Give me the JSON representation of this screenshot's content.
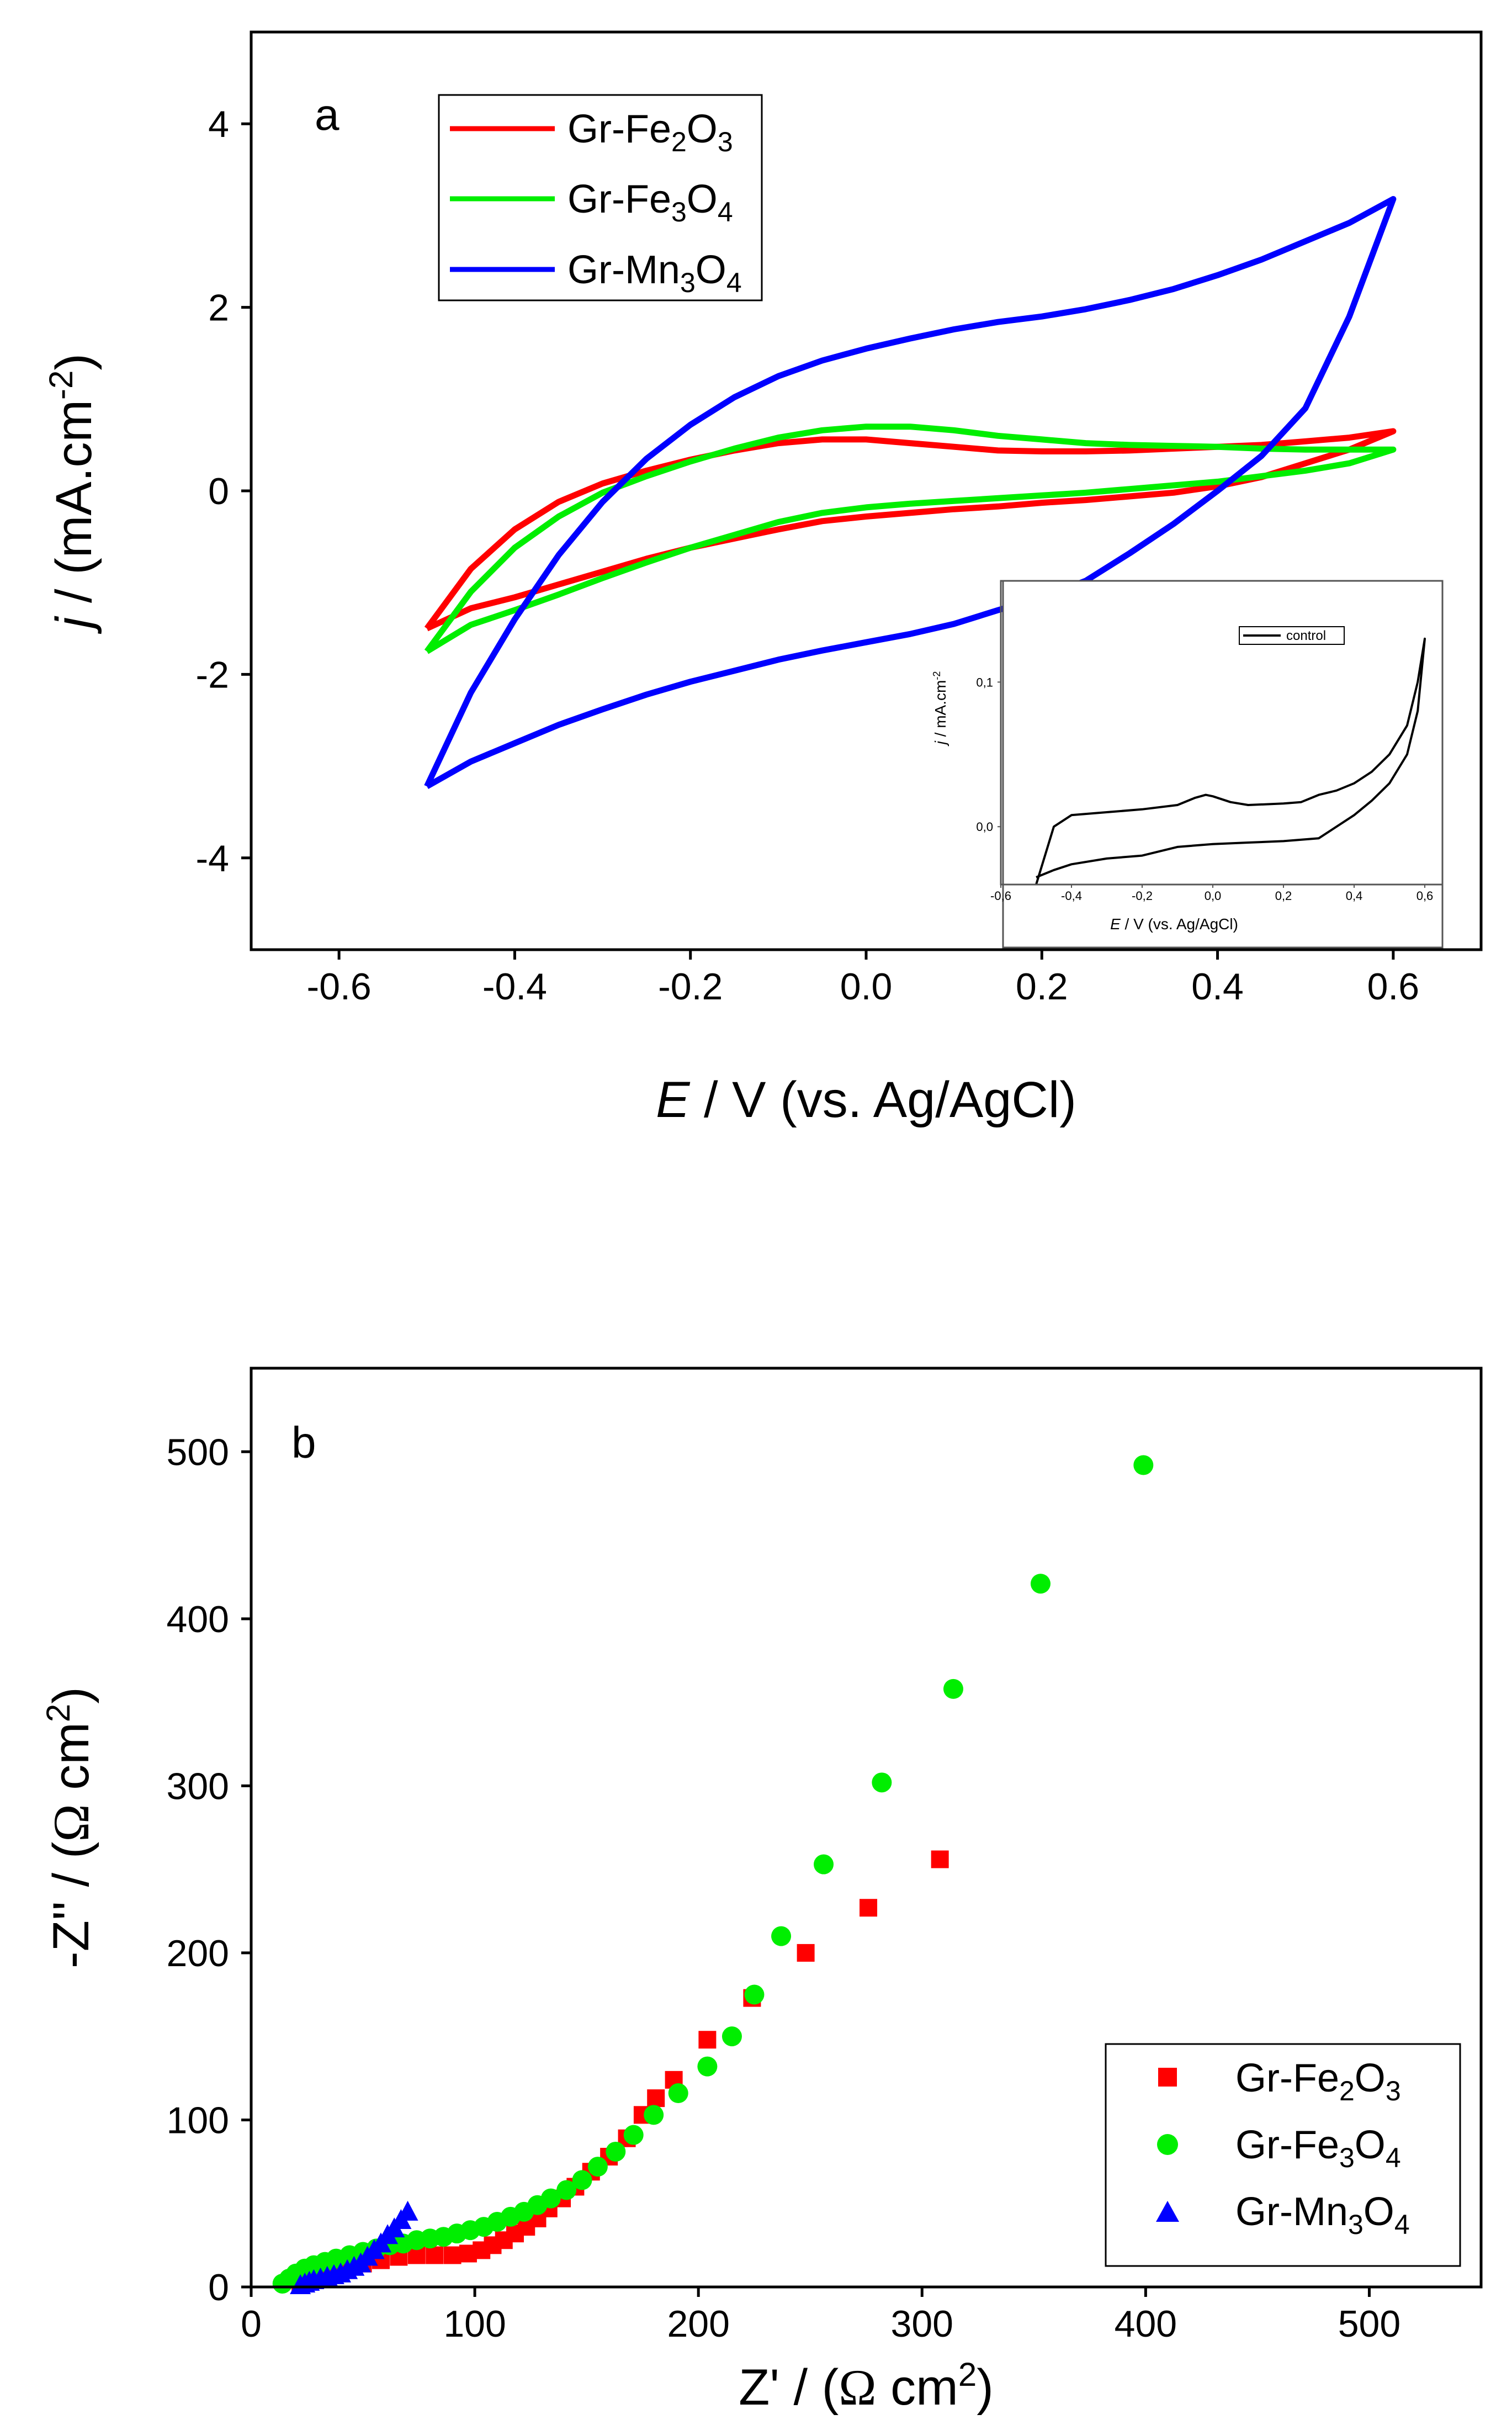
{
  "chart_data": [
    {
      "type": "line",
      "panel_label": "a",
      "xlabel": {
        "italic": "E",
        "rest": " / V (vs. Ag/AgCl)"
      },
      "ylabel": {
        "italic": "j",
        "rest": " / (mA.cm",
        "sup": "-2",
        "close": ")"
      },
      "xlim": [
        -0.7,
        0.7
      ],
      "ylim": [
        -5,
        5
      ],
      "xticks": [
        -0.6,
        -0.4,
        -0.2,
        0.0,
        0.2,
        0.4,
        0.6
      ],
      "xtick_labels": [
        "-0.6",
        "-0.4",
        "-0.2",
        "0.0",
        "0.2",
        "0.4",
        "0.6"
      ],
      "yticks": [
        -4,
        -2,
        0,
        2,
        4
      ],
      "ytick_labels": [
        "-4",
        "-2",
        "0",
        "2",
        "4"
      ],
      "legend_position": "top-left",
      "series": [
        {
          "name": "Gr-Fe2O3",
          "label": {
            "a": "Gr-Fe",
            "s1": "2",
            "b": "O",
            "s2": "3"
          },
          "color": "#ff0000",
          "x": [
            -0.5,
            -0.45,
            -0.4,
            -0.35,
            -0.3,
            -0.25,
            -0.2,
            -0.15,
            -0.1,
            -0.05,
            0.0,
            0.05,
            0.1,
            0.15,
            0.2,
            0.25,
            0.3,
            0.35,
            0.4,
            0.45,
            0.5,
            0.55,
            0.6,
            0.55,
            0.5,
            0.45,
            0.4,
            0.35,
            0.3,
            0.25,
            0.2,
            0.15,
            0.1,
            0.05,
            0.0,
            -0.05,
            -0.1,
            -0.15,
            -0.2,
            -0.25,
            -0.3,
            -0.35,
            -0.4,
            -0.45,
            -0.5
          ],
          "y": [
            -1.5,
            -0.85,
            -0.42,
            -0.12,
            0.08,
            0.22,
            0.34,
            0.44,
            0.52,
            0.56,
            0.56,
            0.52,
            0.48,
            0.44,
            0.43,
            0.43,
            0.44,
            0.46,
            0.48,
            0.5,
            0.54,
            0.58,
            0.65,
            0.45,
            0.3,
            0.15,
            0.05,
            -0.02,
            -0.06,
            -0.1,
            -0.13,
            -0.17,
            -0.2,
            -0.24,
            -0.28,
            -0.33,
            -0.42,
            -0.52,
            -0.62,
            -0.74,
            -0.88,
            -1.02,
            -1.16,
            -1.28,
            -1.5
          ]
        },
        {
          "name": "Gr-Fe3O4",
          "label": {
            "a": "Gr-Fe",
            "s1": "3",
            "b": "O",
            "s2": "4"
          },
          "color": "#00ee00",
          "x": [
            -0.5,
            -0.45,
            -0.4,
            -0.35,
            -0.3,
            -0.25,
            -0.2,
            -0.15,
            -0.1,
            -0.05,
            0.0,
            0.05,
            0.1,
            0.15,
            0.2,
            0.25,
            0.3,
            0.35,
            0.4,
            0.45,
            0.5,
            0.55,
            0.6,
            0.55,
            0.5,
            0.45,
            0.4,
            0.35,
            0.3,
            0.25,
            0.2,
            0.15,
            0.1,
            0.05,
            0.0,
            -0.05,
            -0.1,
            -0.15,
            -0.2,
            -0.25,
            -0.3,
            -0.35,
            -0.4,
            -0.45,
            -0.5
          ],
          "y": [
            -1.75,
            -1.1,
            -0.62,
            -0.28,
            -0.02,
            0.16,
            0.32,
            0.46,
            0.58,
            0.66,
            0.7,
            0.7,
            0.66,
            0.6,
            0.56,
            0.52,
            0.5,
            0.49,
            0.48,
            0.46,
            0.45,
            0.45,
            0.45,
            0.3,
            0.22,
            0.16,
            0.1,
            0.06,
            0.02,
            -0.02,
            -0.05,
            -0.08,
            -0.11,
            -0.14,
            -0.18,
            -0.24,
            -0.34,
            -0.48,
            -0.62,
            -0.78,
            -0.95,
            -1.13,
            -1.3,
            -1.46,
            -1.75
          ]
        },
        {
          "name": "Gr-Mn3O4",
          "label": {
            "a": "Gr-Mn",
            "s1": "3",
            "b": "O",
            "s2": "4"
          },
          "color": "#0000ff",
          "x": [
            -0.5,
            -0.45,
            -0.4,
            -0.35,
            -0.3,
            -0.25,
            -0.2,
            -0.15,
            -0.1,
            -0.05,
            0.0,
            0.05,
            0.1,
            0.15,
            0.2,
            0.25,
            0.3,
            0.35,
            0.4,
            0.45,
            0.5,
            0.55,
            0.6,
            0.55,
            0.5,
            0.45,
            0.4,
            0.35,
            0.3,
            0.25,
            0.2,
            0.15,
            0.1,
            0.05,
            0.0,
            -0.05,
            -0.1,
            -0.15,
            -0.2,
            -0.25,
            -0.3,
            -0.35,
            -0.4,
            -0.45,
            -0.5
          ],
          "y": [
            -3.22,
            -2.2,
            -1.4,
            -0.7,
            -0.12,
            0.35,
            0.72,
            1.02,
            1.25,
            1.42,
            1.55,
            1.66,
            1.76,
            1.84,
            1.9,
            1.98,
            2.08,
            2.2,
            2.35,
            2.52,
            2.72,
            2.92,
            3.18,
            1.9,
            0.9,
            0.38,
            0.0,
            -0.36,
            -0.68,
            -0.98,
            -1.16,
            -1.3,
            -1.45,
            -1.56,
            -1.65,
            -1.74,
            -1.84,
            -1.96,
            -2.08,
            -2.22,
            -2.38,
            -2.55,
            -2.75,
            -2.95,
            -3.22
          ]
        }
      ],
      "inset": {
        "type": "line",
        "xlabel": {
          "italic": "E",
          "rest": " / V (vs. Ag/AgCl)"
        },
        "ylabel": {
          "italic": "j",
          "rest": " / mA.cm",
          "sup": "-2"
        },
        "xlim": [
          -0.6,
          0.65
        ],
        "ylim": [
          -0.04,
          0.17
        ],
        "xticks": [
          -0.6,
          -0.4,
          -0.2,
          0.0,
          0.2,
          0.4,
          0.6
        ],
        "xtick_labels": [
          "-0,6",
          "-0,4",
          "-0,2",
          "0,0",
          "0,2",
          "0,4",
          "0,6"
        ],
        "yticks": [
          0.0,
          0.1
        ],
        "ytick_labels": [
          "0,0",
          "0,1"
        ],
        "legend_position": "top-right",
        "series": [
          {
            "name": "control",
            "color": "#000000",
            "x": [
              -0.5,
              -0.45,
              -0.4,
              -0.3,
              -0.2,
              -0.1,
              -0.05,
              -0.02,
              0.0,
              0.05,
              0.1,
              0.2,
              0.25,
              0.28,
              0.3,
              0.35,
              0.4,
              0.45,
              0.5,
              0.55,
              0.58,
              0.6,
              0.58,
              0.55,
              0.5,
              0.45,
              0.4,
              0.3,
              0.2,
              0.1,
              0.0,
              -0.1,
              -0.2,
              -0.3,
              -0.4,
              -0.45,
              -0.5
            ],
            "y": [
              -0.04,
              0.0,
              0.008,
              0.01,
              0.012,
              0.015,
              0.02,
              0.022,
              0.021,
              0.017,
              0.015,
              0.016,
              0.017,
              0.02,
              0.022,
              0.025,
              0.03,
              0.038,
              0.05,
              0.07,
              0.1,
              0.13,
              0.08,
              0.05,
              0.03,
              0.018,
              0.008,
              -0.008,
              -0.01,
              -0.011,
              -0.012,
              -0.014,
              -0.02,
              -0.022,
              -0.026,
              -0.03,
              -0.035
            ]
          }
        ]
      }
    },
    {
      "type": "scatter",
      "panel_label": "b",
      "xlabel": {
        "a": "Z' / (",
        "omega": "Ω",
        "b": " cm",
        "sup": "2",
        "close": ")"
      },
      "ylabel": {
        "a": "-Z'' / (",
        "omega": "Ω",
        "b": " cm",
        "sup": "2",
        "close": ")"
      },
      "xlim": [
        0,
        550
      ],
      "ylim": [
        0,
        550
      ],
      "xticks": [
        0,
        100,
        200,
        300,
        400,
        500
      ],
      "xtick_labels": [
        "0",
        "100",
        "200",
        "300",
        "400",
        "500"
      ],
      "yticks": [
        0,
        100,
        200,
        300,
        400,
        500
      ],
      "ytick_labels": [
        "0",
        "100",
        "200",
        "300",
        "400",
        "500"
      ],
      "legend_position": "bottom-right",
      "series": [
        {
          "name": "Gr-Fe2O3",
          "label": {
            "a": "Gr-Fe",
            "s1": "2",
            "b": "O",
            "s2": "3"
          },
          "color": "#ff0000",
          "marker": "square",
          "x": [
            22,
            28,
            35,
            42,
            50,
            58,
            66,
            74,
            82,
            90,
            97,
            103,
            108,
            113,
            118,
            123,
            128,
            133,
            139,
            145,
            152,
            160,
            168,
            175,
            181,
            189,
            204,
            224,
            248,
            276,
            308
          ],
          "y": [
            3,
            6,
            9,
            12,
            14,
            16,
            18,
            19,
            19,
            19,
            20,
            22,
            25,
            28,
            32,
            36,
            41,
            47,
            53,
            60,
            69,
            78,
            89,
            103,
            113,
            124,
            148,
            173,
            200,
            227,
            256
          ]
        },
        {
          "name": "Gr-Fe3O4",
          "label": {
            "a": "Gr-Fe",
            "s1": "3",
            "b": "O",
            "s2": "4"
          },
          "color": "#00ee00",
          "marker": "circle",
          "x": [
            14,
            17,
            20,
            24,
            28,
            33,
            38,
            44,
            50,
            56,
            62,
            68,
            74,
            80,
            86,
            92,
            98,
            104,
            110,
            116,
            122,
            128,
            134,
            141,
            148,
            155,
            163,
            171,
            180,
            191,
            204,
            215,
            225,
            237,
            256,
            282,
            314,
            353,
            399
          ],
          "y": [
            2,
            5,
            8,
            11,
            13,
            15,
            17,
            19,
            21,
            23,
            25,
            26,
            28,
            29,
            30,
            32,
            34,
            36,
            39,
            42,
            45,
            49,
            53,
            58,
            64,
            72,
            81,
            91,
            103,
            116,
            132,
            150,
            175,
            210,
            253,
            302,
            358,
            421,
            492
          ]
        },
        {
          "name": "Gr-Mn3O4",
          "label": {
            "a": "Gr-Mn",
            "s1": "3",
            "b": "O",
            "s2": "4"
          },
          "color": "#0000ff",
          "marker": "triangle",
          "x": [
            22,
            24,
            26,
            28,
            31,
            34,
            37,
            40,
            43,
            46,
            49,
            52,
            55,
            58,
            61,
            64,
            67,
            70
          ],
          "y": [
            1,
            2,
            3,
            4,
            5,
            6,
            7,
            8,
            10,
            12,
            14,
            18,
            22,
            26,
            31,
            35,
            40,
            45
          ]
        }
      ]
    }
  ]
}
